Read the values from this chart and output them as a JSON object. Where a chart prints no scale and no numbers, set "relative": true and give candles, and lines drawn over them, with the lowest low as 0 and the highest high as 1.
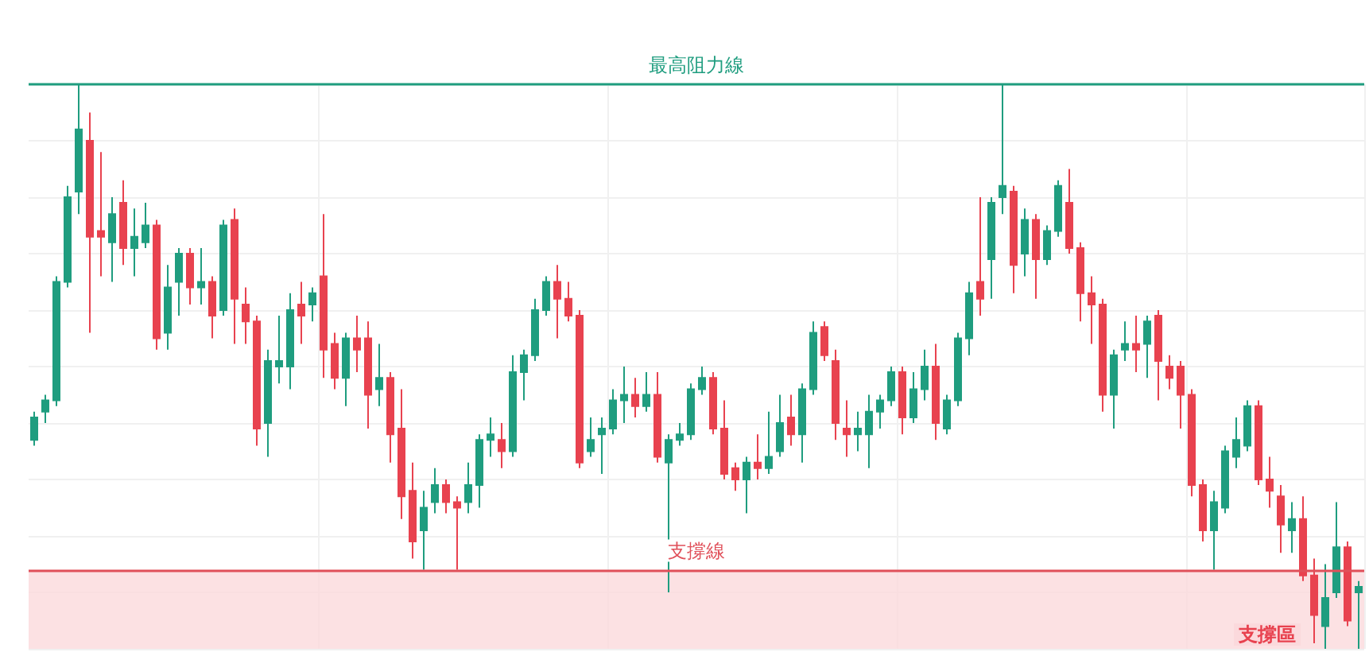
{
  "chart_data": {
    "type": "candlestick",
    "relative": true,
    "grid": true,
    "categories": [
      null,
      null,
      null,
      null,
      null,
      null,
      null,
      null,
      null,
      null,
      null,
      null,
      null,
      null,
      null,
      null,
      null,
      null,
      null,
      null,
      null,
      null,
      null,
      null,
      null,
      null,
      null,
      null,
      null,
      null,
      null,
      null,
      null,
      null,
      null,
      null,
      null,
      null,
      null,
      null,
      null,
      null,
      null,
      null,
      null,
      null,
      null,
      null,
      null,
      null,
      null,
      null,
      null,
      null,
      null,
      null,
      null,
      null,
      null,
      null,
      null,
      null,
      null,
      null,
      null,
      null,
      null,
      null,
      null,
      null,
      null,
      null,
      null,
      null,
      null,
      null,
      null,
      null,
      null,
      null,
      null,
      null,
      null,
      null,
      null,
      null,
      null,
      null,
      null,
      null,
      null,
      null,
      null,
      null,
      null,
      null,
      null,
      null,
      null,
      null,
      null,
      null,
      null,
      null,
      null,
      null,
      null,
      null,
      null,
      null,
      null,
      null,
      null,
      null,
      null,
      null,
      null,
      null,
      null,
      null
    ],
    "ohlc": [
      [
        0.37,
        0.42,
        0.36,
        0.41
      ],
      [
        0.42,
        0.45,
        0.4,
        0.44
      ],
      [
        0.44,
        0.66,
        0.43,
        0.65
      ],
      [
        0.65,
        0.82,
        0.64,
        0.8
      ],
      [
        0.81,
        1,
        0.77,
        0.92
      ],
      [
        0.9,
        0.95,
        0.56,
        0.73
      ],
      [
        0.74,
        0.88,
        0.66,
        0.73
      ],
      [
        0.72,
        0.8,
        0.65,
        0.77
      ],
      [
        0.79,
        0.83,
        0.68,
        0.71
      ],
      [
        0.71,
        0.78,
        0.66,
        0.73
      ],
      [
        0.72,
        0.79,
        0.71,
        0.75
      ],
      [
        0.75,
        0.76,
        0.53,
        0.55
      ],
      [
        0.56,
        0.68,
        0.53,
        0.64
      ],
      [
        0.65,
        0.71,
        0.59,
        0.7
      ],
      [
        0.7,
        0.71,
        0.61,
        0.64
      ],
      [
        0.64,
        0.71,
        0.61,
        0.65
      ],
      [
        0.65,
        0.66,
        0.55,
        0.59
      ],
      [
        0.6,
        0.76,
        0.59,
        0.75
      ],
      [
        0.76,
        0.78,
        0.54,
        0.62
      ],
      [
        0.61,
        0.64,
        0.54,
        0.58
      ],
      [
        0.58,
        0.59,
        0.36,
        0.39
      ],
      [
        0.4,
        0.53,
        0.34,
        0.51
      ],
      [
        0.5,
        0.59,
        0.47,
        0.51
      ],
      [
        0.5,
        0.63,
        0.46,
        0.6
      ],
      [
        0.61,
        0.65,
        0.54,
        0.59
      ],
      [
        0.61,
        0.64,
        0.58,
        0.63
      ],
      [
        0.66,
        0.77,
        0.48,
        0.53
      ],
      [
        0.54,
        0.56,
        0.46,
        0.48
      ],
      [
        0.48,
        0.56,
        0.43,
        0.55
      ],
      [
        0.55,
        0.59,
        0.49,
        0.53
      ],
      [
        0.55,
        0.58,
        0.39,
        0.45
      ],
      [
        0.46,
        0.54,
        0.43,
        0.48
      ],
      [
        0.48,
        0.49,
        0.33,
        0.38
      ],
      [
        0.39,
        0.46,
        0.23,
        0.27
      ],
      [
        0.28,
        0.33,
        0.16,
        0.19
      ],
      [
        0.21,
        0.28,
        0.14,
        0.25
      ],
      [
        0.26,
        0.32,
        0.24,
        0.29
      ],
      [
        0.29,
        0.3,
        0.24,
        0.26
      ],
      [
        0.26,
        0.27,
        0.14,
        0.25
      ],
      [
        0.26,
        0.33,
        0.24,
        0.29
      ],
      [
        0.29,
        0.38,
        0.25,
        0.37
      ],
      [
        0.37,
        0.41,
        0.34,
        0.38
      ],
      [
        0.37,
        0.4,
        0.32,
        0.35
      ],
      [
        0.35,
        0.52,
        0.34,
        0.49
      ],
      [
        0.49,
        0.53,
        0.44,
        0.52
      ],
      [
        0.52,
        0.62,
        0.51,
        0.6
      ],
      [
        0.6,
        0.66,
        0.59,
        0.65
      ],
      [
        0.65,
        0.68,
        0.55,
        0.62
      ],
      [
        0.62,
        0.65,
        0.58,
        0.59
      ],
      [
        0.59,
        0.6,
        0.32,
        0.33
      ],
      [
        0.35,
        0.41,
        0.34,
        0.37
      ],
      [
        0.38,
        0.41,
        0.31,
        0.39
      ],
      [
        0.39,
        0.46,
        0.38,
        0.44
      ],
      [
        0.44,
        0.5,
        0.4,
        0.45
      ],
      [
        0.45,
        0.48,
        0.41,
        0.43
      ],
      [
        0.43,
        0.49,
        0.42,
        0.45
      ],
      [
        0.45,
        0.49,
        0.33,
        0.34
      ],
      [
        0.33,
        0.38,
        0.1,
        0.37
      ],
      [
        0.37,
        0.4,
        0.36,
        0.38
      ],
      [
        0.38,
        0.47,
        0.37,
        0.46
      ],
      [
        0.46,
        0.5,
        0.45,
        0.48
      ],
      [
        0.48,
        0.49,
        0.38,
        0.39
      ],
      [
        0.39,
        0.44,
        0.3,
        0.31
      ],
      [
        0.32,
        0.33,
        0.28,
        0.3
      ],
      [
        0.3,
        0.34,
        0.24,
        0.33
      ],
      [
        0.33,
        0.38,
        0.3,
        0.32
      ],
      [
        0.32,
        0.42,
        0.31,
        0.34
      ],
      [
        0.35,
        0.45,
        0.34,
        0.4
      ],
      [
        0.41,
        0.45,
        0.36,
        0.38
      ],
      [
        0.38,
        0.47,
        0.33,
        0.46
      ],
      [
        0.46,
        0.58,
        0.45,
        0.56
      ],
      [
        0.57,
        0.58,
        0.51,
        0.52
      ],
      [
        0.51,
        0.53,
        0.37,
        0.4
      ],
      [
        0.39,
        0.44,
        0.34,
        0.38
      ],
      [
        0.38,
        0.42,
        0.35,
        0.39
      ],
      [
        0.38,
        0.45,
        0.32,
        0.42
      ],
      [
        0.42,
        0.45,
        0.39,
        0.44
      ],
      [
        0.44,
        0.5,
        0.43,
        0.49
      ],
      [
        0.49,
        0.5,
        0.38,
        0.41
      ],
      [
        0.41,
        0.49,
        0.4,
        0.46
      ],
      [
        0.46,
        0.53,
        0.44,
        0.5
      ],
      [
        0.5,
        0.54,
        0.37,
        0.4
      ],
      [
        0.39,
        0.45,
        0.38,
        0.44
      ],
      [
        0.44,
        0.56,
        0.43,
        0.55
      ],
      [
        0.55,
        0.65,
        0.52,
        0.63
      ],
      [
        0.65,
        0.8,
        0.59,
        0.62
      ],
      [
        0.69,
        0.8,
        0.62,
        0.79
      ],
      [
        0.8,
        1,
        0.77,
        0.82
      ],
      [
        0.81,
        0.82,
        0.63,
        0.68
      ],
      [
        0.7,
        0.78,
        0.66,
        0.76
      ],
      [
        0.76,
        0.77,
        0.62,
        0.69
      ],
      [
        0.69,
        0.75,
        0.68,
        0.74
      ],
      [
        0.74,
        0.83,
        0.73,
        0.82
      ],
      [
        0.79,
        0.85,
        0.7,
        0.71
      ],
      [
        0.71,
        0.72,
        0.58,
        0.63
      ],
      [
        0.63,
        0.66,
        0.54,
        0.61
      ],
      [
        0.61,
        0.62,
        0.42,
        0.45
      ],
      [
        0.45,
        0.53,
        0.39,
        0.52
      ],
      [
        0.53,
        0.58,
        0.51,
        0.54
      ],
      [
        0.54,
        0.59,
        0.49,
        0.53
      ],
      [
        0.54,
        0.59,
        0.48,
        0.58
      ],
      [
        0.59,
        0.6,
        0.44,
        0.51
      ],
      [
        0.5,
        0.52,
        0.46,
        0.48
      ],
      [
        0.5,
        0.51,
        0.39,
        0.45
      ],
      [
        0.45,
        0.46,
        0.27,
        0.29
      ],
      [
        0.29,
        0.3,
        0.19,
        0.21
      ],
      [
        0.21,
        0.28,
        0.14,
        0.26
      ],
      [
        0.25,
        0.36,
        0.24,
        0.35
      ],
      [
        0.34,
        0.41,
        0.32,
        0.37
      ],
      [
        0.36,
        0.44,
        0.35,
        0.43
      ],
      [
        0.43,
        0.44,
        0.29,
        0.3
      ],
      [
        0.3,
        0.34,
        0.25,
        0.28
      ],
      [
        0.27,
        0.29,
        0.17,
        0.22
      ],
      [
        0.21,
        0.26,
        0.17,
        0.23
      ],
      [
        0.23,
        0.27,
        0.12,
        0.13
      ],
      [
        0.13,
        0.16,
        0.01,
        0.06
      ],
      [
        0.04,
        0.15,
        0,
        0.09
      ],
      [
        0.1,
        0.26,
        0.09,
        0.18
      ],
      [
        0.18,
        0.19,
        0.04,
        0.05
      ],
      [
        0.1,
        0.12,
        0,
        0.11
      ]
    ],
    "ref_lines": [
      {
        "axis": "y",
        "value": 1,
        "label": "最高阻力線",
        "color": "#1f9d7f"
      },
      {
        "axis": "y",
        "value": 0.14,
        "label": "支撐線",
        "color": "#e0505a"
      }
    ],
    "bands": [
      {
        "axis": "y",
        "from": 0,
        "to": 0.14,
        "label": "支撐區",
        "color": "#fbd9dc"
      }
    ]
  }
}
